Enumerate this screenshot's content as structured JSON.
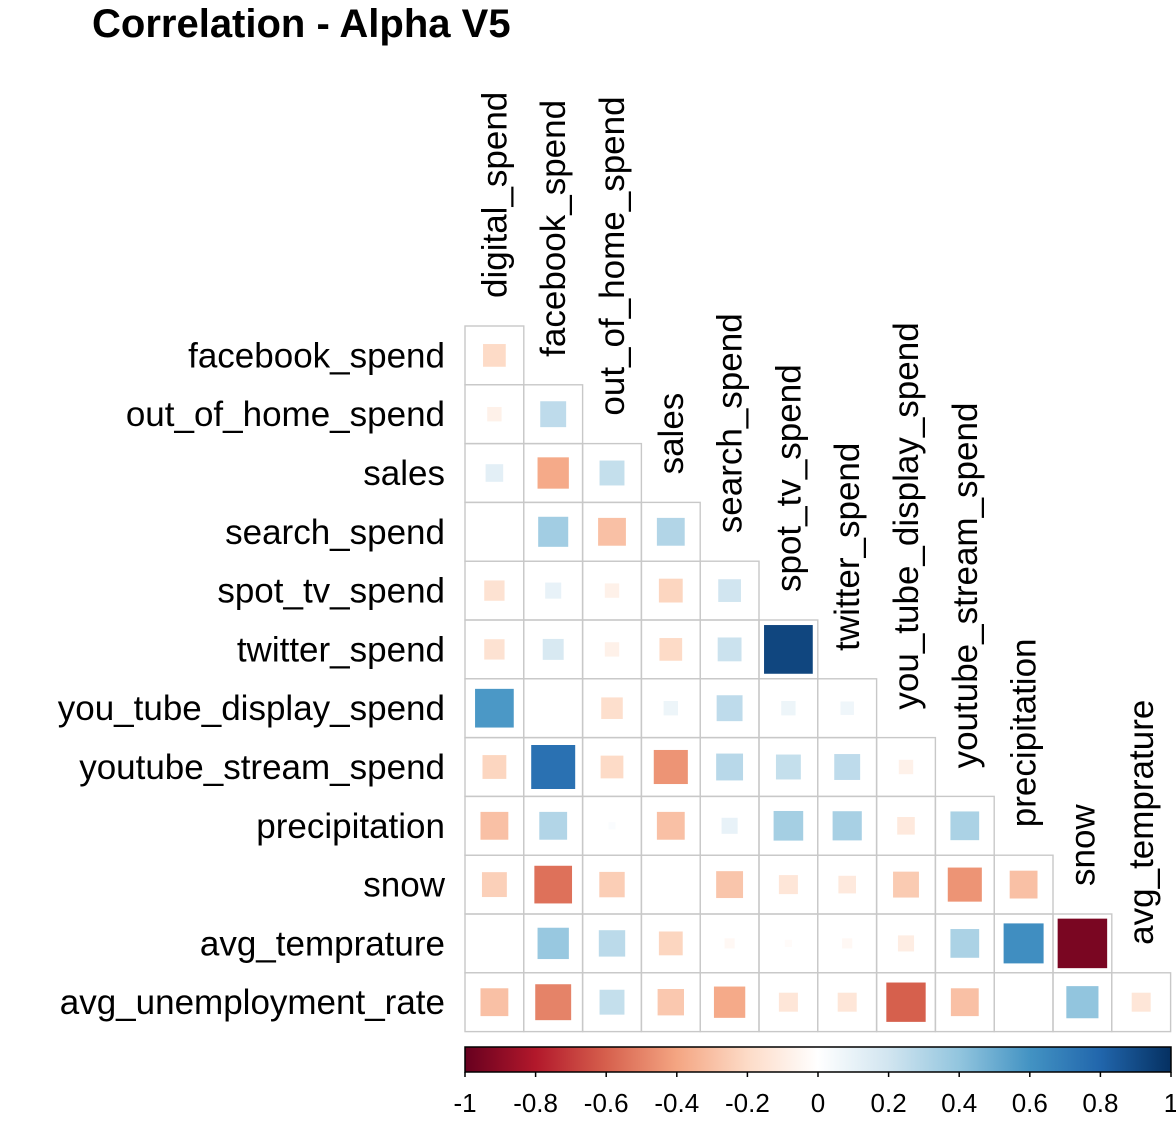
{
  "chart_data": {
    "type": "heatmap",
    "title": "Correlation - Alpha V5",
    "column_labels": [
      "digital_spend",
      "facebook_spend",
      "out_of_home_spend",
      "sales",
      "search_spend",
      "spot_tv_spend",
      "twitter_spend",
      "you_tube_display_spend",
      "youtube_stream_spend",
      "precipitation",
      "snow",
      "avg_temprature"
    ],
    "row_labels": [
      "facebook_spend",
      "out_of_home_spend",
      "sales",
      "search_spend",
      "spot_tv_spend",
      "twitter_spend",
      "you_tube_display_spend",
      "youtube_stream_spend",
      "precipitation",
      "snow",
      "avg_temprature",
      "avg_unemployment_rate"
    ],
    "values": [
      [
        -0.2
      ],
      [
        -0.08,
        0.26
      ],
      [
        0.12,
        -0.38,
        0.24
      ],
      [
        0.0,
        0.35,
        -0.3,
        0.3
      ],
      [
        -0.16,
        0.1,
        -0.08,
        -0.22,
        0.2
      ],
      [
        -0.16,
        0.17,
        -0.08,
        -0.2,
        0.22,
        0.92
      ],
      [
        0.58,
        0.0,
        -0.18,
        0.08,
        0.26,
        0.08,
        0.07
      ],
      [
        -0.22,
        0.75,
        -0.2,
        -0.45,
        0.28,
        0.24,
        0.26,
        -0.08
      ],
      [
        -0.3,
        0.3,
        0.02,
        -0.3,
        0.1,
        0.34,
        0.33,
        -0.12,
        0.32
      ],
      [
        -0.24,
        -0.55,
        -0.25,
        0.0,
        -0.28,
        -0.14,
        -0.12,
        -0.26,
        -0.45,
        -0.3
      ],
      [
        0.0,
        0.38,
        0.27,
        -0.22,
        -0.04,
        -0.02,
        -0.04,
        -0.1,
        0.32,
        0.62,
        -0.95
      ],
      [
        -0.3,
        -0.5,
        0.24,
        -0.27,
        -0.38,
        -0.14,
        -0.14,
        -0.6,
        -0.3,
        0.0,
        0.4,
        -0.14
      ]
    ],
    "legend": {
      "range": [
        -1,
        1
      ],
      "ticks": [
        "-1",
        "-0.8",
        "-0.6",
        "-0.4",
        "-0.2",
        "0",
        "0.2",
        "0.4",
        "0.6",
        "0.8",
        "1"
      ],
      "colors": [
        "#67001F",
        "#B2182B",
        "#D6604D",
        "#F4A582",
        "#FDDBC7",
        "#FFFFFF",
        "#D1E5F0",
        "#92C5DE",
        "#4393C3",
        "#2166AC",
        "#053061"
      ],
      "placement": "bottom"
    },
    "grid": true,
    "shape": "square"
  }
}
